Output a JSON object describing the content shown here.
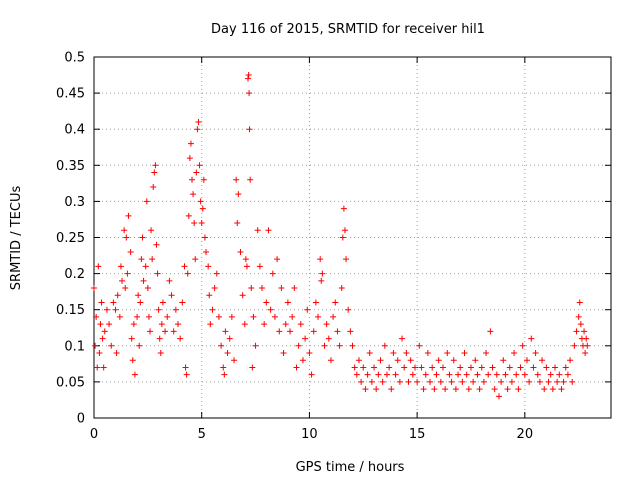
{
  "chart_data": {
    "type": "scatter",
    "title": "Day 116 of 2015, SRMTID for receiver hil1",
    "xlabel": "GPS time / hours",
    "ylabel": "SRMTID / TECUs",
    "xlim": [
      0,
      24
    ],
    "ylim": [
      0,
      0.5
    ],
    "grid": true,
    "marker": "+",
    "color": "#ff0000",
    "x_ticks": [
      0,
      5,
      10,
      15,
      20
    ],
    "x_tick_labels": [
      "0",
      "5",
      "10",
      "15",
      "20"
    ],
    "y_ticks": [
      0,
      0.05,
      0.1,
      0.15,
      0.2,
      0.25,
      0.3,
      0.35,
      0.4,
      0.45,
      0.5
    ],
    "y_tick_labels": [
      "0",
      "0.05",
      "0.1",
      "0.15",
      "0.2",
      "0.25",
      "0.3",
      "0.35",
      "0.4",
      "0.45",
      "0.5"
    ],
    "series": [
      {
        "name": "hil1",
        "points": [
          [
            0.0,
            0.18
          ],
          [
            0.05,
            0.1
          ],
          [
            0.1,
            0.14
          ],
          [
            0.15,
            0.07
          ],
          [
            0.2,
            0.21
          ],
          [
            0.25,
            0.09
          ],
          [
            0.3,
            0.13
          ],
          [
            0.35,
            0.16
          ],
          [
            0.4,
            0.11
          ],
          [
            0.45,
            0.07
          ],
          [
            0.5,
            0.12
          ],
          [
            0.6,
            0.15
          ],
          [
            0.7,
            0.13
          ],
          [
            0.8,
            0.1
          ],
          [
            0.9,
            0.16
          ],
          [
            1.0,
            0.15
          ],
          [
            1.05,
            0.09
          ],
          [
            1.1,
            0.17
          ],
          [
            1.2,
            0.14
          ],
          [
            1.25,
            0.21
          ],
          [
            1.3,
            0.19
          ],
          [
            1.4,
            0.26
          ],
          [
            1.45,
            0.18
          ],
          [
            1.5,
            0.25
          ],
          [
            1.55,
            0.2
          ],
          [
            1.6,
            0.28
          ],
          [
            1.7,
            0.23
          ],
          [
            1.75,
            0.11
          ],
          [
            1.8,
            0.08
          ],
          [
            1.85,
            0.13
          ],
          [
            1.9,
            0.06
          ],
          [
            2.0,
            0.14
          ],
          [
            2.05,
            0.17
          ],
          [
            2.1,
            0.1
          ],
          [
            2.15,
            0.16
          ],
          [
            2.2,
            0.22
          ],
          [
            2.25,
            0.25
          ],
          [
            2.3,
            0.19
          ],
          [
            2.4,
            0.21
          ],
          [
            2.45,
            0.3
          ],
          [
            2.5,
            0.18
          ],
          [
            2.55,
            0.14
          ],
          [
            2.6,
            0.12
          ],
          [
            2.65,
            0.26
          ],
          [
            2.7,
            0.22
          ],
          [
            2.75,
            0.32
          ],
          [
            2.8,
            0.34
          ],
          [
            2.85,
            0.35
          ],
          [
            2.9,
            0.24
          ],
          [
            2.95,
            0.2
          ],
          [
            3.0,
            0.15
          ],
          [
            3.05,
            0.11
          ],
          [
            3.1,
            0.09
          ],
          [
            3.15,
            0.13
          ],
          [
            3.2,
            0.16
          ],
          [
            3.3,
            0.12
          ],
          [
            3.4,
            0.14
          ],
          [
            3.5,
            0.19
          ],
          [
            3.6,
            0.17
          ],
          [
            3.7,
            0.12
          ],
          [
            3.8,
            0.15
          ],
          [
            3.9,
            0.13
          ],
          [
            4.0,
            0.11
          ],
          [
            4.1,
            0.16
          ],
          [
            4.2,
            0.21
          ],
          [
            4.25,
            0.07
          ],
          [
            4.3,
            0.06
          ],
          [
            4.35,
            0.2
          ],
          [
            4.4,
            0.28
          ],
          [
            4.45,
            0.36
          ],
          [
            4.5,
            0.38
          ],
          [
            4.55,
            0.33
          ],
          [
            4.6,
            0.31
          ],
          [
            4.65,
            0.27
          ],
          [
            4.7,
            0.22
          ],
          [
            4.75,
            0.34
          ],
          [
            4.8,
            0.4
          ],
          [
            4.85,
            0.41
          ],
          [
            4.9,
            0.35
          ],
          [
            4.95,
            0.3
          ],
          [
            5.0,
            0.27
          ],
          [
            5.05,
            0.29
          ],
          [
            5.1,
            0.33
          ],
          [
            5.15,
            0.25
          ],
          [
            5.2,
            0.23
          ],
          [
            5.3,
            0.21
          ],
          [
            5.35,
            0.17
          ],
          [
            5.4,
            0.13
          ],
          [
            5.5,
            0.15
          ],
          [
            5.6,
            0.18
          ],
          [
            5.7,
            0.2
          ],
          [
            5.8,
            0.14
          ],
          [
            5.9,
            0.1
          ],
          [
            6.0,
            0.07
          ],
          [
            6.05,
            0.06
          ],
          [
            6.1,
            0.12
          ],
          [
            6.2,
            0.09
          ],
          [
            6.3,
            0.11
          ],
          [
            6.4,
            0.14
          ],
          [
            6.5,
            0.08
          ],
          [
            6.6,
            0.33
          ],
          [
            6.65,
            0.27
          ],
          [
            6.7,
            0.31
          ],
          [
            6.8,
            0.23
          ],
          [
            6.9,
            0.17
          ],
          [
            7.0,
            0.13
          ],
          [
            7.05,
            0.22
          ],
          [
            7.1,
            0.21
          ],
          [
            7.15,
            0.47
          ],
          [
            7.18,
            0.475
          ],
          [
            7.2,
            0.45
          ],
          [
            7.22,
            0.4
          ],
          [
            7.25,
            0.33
          ],
          [
            7.3,
            0.18
          ],
          [
            7.35,
            0.07
          ],
          [
            7.4,
            0.14
          ],
          [
            7.5,
            0.1
          ],
          [
            7.6,
            0.26
          ],
          [
            7.7,
            0.21
          ],
          [
            7.8,
            0.18
          ],
          [
            7.9,
            0.13
          ],
          [
            8.0,
            0.16
          ],
          [
            8.1,
            0.26
          ],
          [
            8.2,
            0.15
          ],
          [
            8.3,
            0.2
          ],
          [
            8.4,
            0.14
          ],
          [
            8.5,
            0.22
          ],
          [
            8.6,
            0.12
          ],
          [
            8.7,
            0.18
          ],
          [
            8.8,
            0.09
          ],
          [
            8.9,
            0.13
          ],
          [
            9.0,
            0.16
          ],
          [
            9.1,
            0.12
          ],
          [
            9.2,
            0.14
          ],
          [
            9.3,
            0.18
          ],
          [
            9.4,
            0.07
          ],
          [
            9.5,
            0.1
          ],
          [
            9.6,
            0.13
          ],
          [
            9.7,
            0.08
          ],
          [
            9.8,
            0.11
          ],
          [
            9.9,
            0.15
          ],
          [
            10.0,
            0.09
          ],
          [
            10.1,
            0.06
          ],
          [
            10.2,
            0.12
          ],
          [
            10.3,
            0.16
          ],
          [
            10.4,
            0.14
          ],
          [
            10.5,
            0.22
          ],
          [
            10.55,
            0.19
          ],
          [
            10.6,
            0.2
          ],
          [
            10.7,
            0.1
          ],
          [
            10.8,
            0.13
          ],
          [
            10.9,
            0.11
          ],
          [
            11.0,
            0.08
          ],
          [
            11.1,
            0.14
          ],
          [
            11.2,
            0.16
          ],
          [
            11.3,
            0.12
          ],
          [
            11.4,
            0.1
          ],
          [
            11.5,
            0.18
          ],
          [
            11.55,
            0.25
          ],
          [
            11.6,
            0.29
          ],
          [
            11.65,
            0.26
          ],
          [
            11.7,
            0.22
          ],
          [
            11.8,
            0.15
          ],
          [
            11.9,
            0.12
          ],
          [
            12.0,
            0.1
          ],
          [
            12.1,
            0.07
          ],
          [
            12.2,
            0.06
          ],
          [
            12.3,
            0.08
          ],
          [
            12.4,
            0.05
          ],
          [
            12.5,
            0.07
          ],
          [
            12.6,
            0.04
          ],
          [
            12.7,
            0.06
          ],
          [
            12.8,
            0.09
          ],
          [
            12.9,
            0.05
          ],
          [
            13.0,
            0.07
          ],
          [
            13.1,
            0.04
          ],
          [
            13.2,
            0.06
          ],
          [
            13.3,
            0.08
          ],
          [
            13.4,
            0.05
          ],
          [
            13.5,
            0.1
          ],
          [
            13.6,
            0.06
          ],
          [
            13.7,
            0.07
          ],
          [
            13.8,
            0.04
          ],
          [
            13.9,
            0.09
          ],
          [
            14.0,
            0.06
          ],
          [
            14.1,
            0.08
          ],
          [
            14.2,
            0.05
          ],
          [
            14.3,
            0.11
          ],
          [
            14.4,
            0.07
          ],
          [
            14.5,
            0.09
          ],
          [
            14.6,
            0.05
          ],
          [
            14.7,
            0.08
          ],
          [
            14.8,
            0.06
          ],
          [
            14.9,
            0.07
          ],
          [
            15.0,
            0.05
          ],
          [
            15.1,
            0.1
          ],
          [
            15.2,
            0.07
          ],
          [
            15.3,
            0.04
          ],
          [
            15.4,
            0.06
          ],
          [
            15.5,
            0.09
          ],
          [
            15.6,
            0.05
          ],
          [
            15.7,
            0.07
          ],
          [
            15.8,
            0.04
          ],
          [
            15.9,
            0.06
          ],
          [
            16.0,
            0.08
          ],
          [
            16.1,
            0.05
          ],
          [
            16.2,
            0.07
          ],
          [
            16.3,
            0.04
          ],
          [
            16.4,
            0.09
          ],
          [
            16.5,
            0.06
          ],
          [
            16.6,
            0.05
          ],
          [
            16.7,
            0.08
          ],
          [
            16.8,
            0.04
          ],
          [
            16.9,
            0.06
          ],
          [
            17.0,
            0.07
          ],
          [
            17.1,
            0.05
          ],
          [
            17.2,
            0.09
          ],
          [
            17.3,
            0.06
          ],
          [
            17.4,
            0.04
          ],
          [
            17.5,
            0.07
          ],
          [
            17.6,
            0.05
          ],
          [
            17.7,
            0.08
          ],
          [
            17.8,
            0.06
          ],
          [
            17.9,
            0.04
          ],
          [
            18.0,
            0.07
          ],
          [
            18.1,
            0.05
          ],
          [
            18.2,
            0.09
          ],
          [
            18.3,
            0.06
          ],
          [
            18.4,
            0.12
          ],
          [
            18.5,
            0.07
          ],
          [
            18.6,
            0.04
          ],
          [
            18.7,
            0.06
          ],
          [
            18.8,
            0.03
          ],
          [
            18.9,
            0.05
          ],
          [
            19.0,
            0.08
          ],
          [
            19.1,
            0.06
          ],
          [
            19.2,
            0.04
          ],
          [
            19.3,
            0.07
          ],
          [
            19.4,
            0.05
          ],
          [
            19.5,
            0.09
          ],
          [
            19.6,
            0.06
          ],
          [
            19.7,
            0.04
          ],
          [
            19.8,
            0.07
          ],
          [
            19.9,
            0.1
          ],
          [
            20.0,
            0.06
          ],
          [
            20.1,
            0.08
          ],
          [
            20.2,
            0.05
          ],
          [
            20.3,
            0.11
          ],
          [
            20.4,
            0.07
          ],
          [
            20.5,
            0.09
          ],
          [
            20.6,
            0.06
          ],
          [
            20.7,
            0.05
          ],
          [
            20.8,
            0.08
          ],
          [
            20.9,
            0.04
          ],
          [
            21.0,
            0.07
          ],
          [
            21.1,
            0.05
          ],
          [
            21.2,
            0.06
          ],
          [
            21.3,
            0.04
          ],
          [
            21.4,
            0.07
          ],
          [
            21.5,
            0.05
          ],
          [
            21.6,
            0.06
          ],
          [
            21.7,
            0.04
          ],
          [
            21.8,
            0.05
          ],
          [
            21.9,
            0.07
          ],
          [
            22.0,
            0.06
          ],
          [
            22.1,
            0.08
          ],
          [
            22.2,
            0.05
          ],
          [
            22.3,
            0.1
          ],
          [
            22.4,
            0.12
          ],
          [
            22.5,
            0.14
          ],
          [
            22.55,
            0.16
          ],
          [
            22.6,
            0.13
          ],
          [
            22.65,
            0.11
          ],
          [
            22.7,
            0.1
          ],
          [
            22.75,
            0.12
          ],
          [
            22.8,
            0.09
          ],
          [
            22.85,
            0.11
          ],
          [
            22.9,
            0.1
          ]
        ]
      }
    ]
  }
}
